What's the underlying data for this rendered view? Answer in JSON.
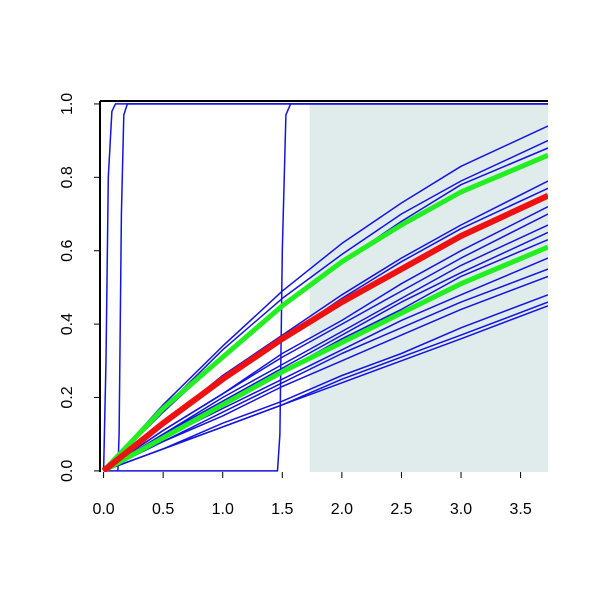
{
  "chart_data": {
    "type": "line",
    "xlim": [
      -0.03,
      3.73
    ],
    "ylim": [
      -0.003,
      1.008
    ],
    "xticks": [
      {
        "value": 0,
        "label": "0.0"
      },
      0.5,
      {
        "value": 1,
        "label": "1.0"
      },
      1.5,
      {
        "value": 2,
        "label": "2.0"
      },
      2.5,
      {
        "value": 3,
        "label": "3.0"
      },
      3.5
    ],
    "yticks": [
      {
        "value": 0,
        "label": "0.0"
      },
      0.2,
      0.4,
      0.6,
      0.8,
      {
        "value": 1,
        "label": "1.0"
      }
    ],
    "shade_from": 1.73,
    "shade_color": "#e0ecec",
    "series": [
      {
        "color": "#1414dc",
        "width": 1.5,
        "x": [
          0,
          0.02,
          0.04,
          0.07,
          0.1,
          3.73
        ],
        "values": [
          0,
          0.3,
          0.8,
          0.98,
          1,
          1
        ]
      },
      {
        "color": "#1414dc",
        "width": 1.5,
        "x": [
          0.12,
          0.13,
          0.15,
          0.17,
          0.2,
          3.73
        ],
        "values": [
          0,
          0.1,
          0.7,
          0.97,
          1,
          1
        ]
      },
      {
        "color": "#1414dc",
        "width": 1.5,
        "x": [
          0,
          1.46,
          1.48,
          1.5,
          1.53,
          1.57,
          3.73
        ],
        "values": [
          0,
          0,
          0.1,
          0.6,
          0.97,
          1,
          1
        ]
      },
      {
        "color": "#1414dc",
        "width": 1.5,
        "x": [
          0,
          0.5,
          1,
          1.5,
          2,
          2.5,
          3,
          3.73
        ],
        "values": [
          0,
          0.18,
          0.34,
          0.49,
          0.62,
          0.73,
          0.83,
          0.94
        ]
      },
      {
        "color": "#1414dc",
        "width": 1.5,
        "x": [
          0,
          0.5,
          1,
          1.5,
          2,
          2.5,
          3,
          3.73
        ],
        "values": [
          0,
          0.17,
          0.33,
          0.47,
          0.59,
          0.7,
          0.79,
          0.9
        ]
      },
      {
        "color": "#1414dc",
        "width": 1.5,
        "x": [
          0,
          0.5,
          1,
          1.5,
          2,
          2.5,
          3,
          3.73
        ],
        "values": [
          0,
          0.16,
          0.31,
          0.45,
          0.57,
          0.68,
          0.78,
          0.88
        ]
      },
      {
        "color": "#1414dc",
        "width": 1.5,
        "x": [
          0,
          0.5,
          1,
          1.5,
          2,
          2.5,
          3,
          3.73
        ],
        "values": [
          0,
          0.13,
          0.26,
          0.37,
          0.48,
          0.58,
          0.67,
          0.79
        ]
      },
      {
        "color": "#1414dc",
        "width": 1.5,
        "x": [
          0,
          0.5,
          1,
          1.5,
          2,
          2.5,
          3,
          3.73
        ],
        "values": [
          0,
          0.13,
          0.25,
          0.36,
          0.47,
          0.57,
          0.66,
          0.77
        ]
      },
      {
        "color": "#1414dc",
        "width": 1.5,
        "x": [
          0,
          0.5,
          1,
          1.5,
          2,
          2.5,
          3,
          3.73
        ],
        "values": [
          0,
          0.11,
          0.21,
          0.32,
          0.41,
          0.51,
          0.6,
          0.72
        ]
      },
      {
        "color": "#1414dc",
        "width": 1.5,
        "x": [
          0,
          0.5,
          1,
          1.5,
          2,
          2.5,
          3,
          3.73
        ],
        "values": [
          0,
          0.11,
          0.21,
          0.31,
          0.4,
          0.49,
          0.58,
          0.7
        ]
      },
      {
        "color": "#1414dc",
        "width": 1.5,
        "x": [
          0,
          0.5,
          1,
          1.5,
          2,
          2.5,
          3,
          3.73
        ],
        "values": [
          0,
          0.1,
          0.2,
          0.29,
          0.38,
          0.47,
          0.56,
          0.67
        ]
      },
      {
        "color": "#1414dc",
        "width": 1.5,
        "x": [
          0,
          0.5,
          1,
          1.5,
          2,
          2.5,
          3,
          3.73
        ],
        "values": [
          0,
          0.1,
          0.19,
          0.28,
          0.37,
          0.46,
          0.54,
          0.65
        ]
      },
      {
        "color": "#1414dc",
        "width": 1.5,
        "x": [
          0,
          0.5,
          1,
          1.5,
          2,
          2.5,
          3,
          3.73
        ],
        "values": [
          0,
          0.09,
          0.18,
          0.27,
          0.36,
          0.44,
          0.53,
          0.63
        ]
      },
      {
        "color": "#1414dc",
        "width": 1.5,
        "x": [
          0,
          0.5,
          1,
          1.5,
          2,
          2.5,
          3,
          3.73
        ],
        "values": [
          0,
          0.09,
          0.17,
          0.25,
          0.33,
          0.41,
          0.48,
          0.58
        ]
      },
      {
        "color": "#1414dc",
        "width": 1.5,
        "x": [
          0,
          0.5,
          1,
          1.5,
          2,
          2.5,
          3,
          3.73
        ],
        "values": [
          0,
          0.08,
          0.16,
          0.24,
          0.32,
          0.39,
          0.46,
          0.55
        ]
      },
      {
        "color": "#1414dc",
        "width": 1.5,
        "x": [
          0,
          0.5,
          1,
          1.5,
          2,
          2.5,
          3,
          3.73
        ],
        "values": [
          0,
          0.08,
          0.15,
          0.23,
          0.3,
          0.37,
          0.44,
          0.53
        ]
      },
      {
        "color": "#1414dc",
        "width": 1.5,
        "x": [
          0,
          0.5,
          1,
          1.5,
          2,
          2.5,
          3,
          3.73
        ],
        "values": [
          0,
          0.06,
          0.13,
          0.19,
          0.26,
          0.32,
          0.39,
          0.48
        ]
      },
      {
        "color": "#1414dc",
        "width": 1.5,
        "x": [
          0,
          0.5,
          1,
          1.5,
          2,
          2.5,
          3,
          3.73
        ],
        "values": [
          0,
          0.06,
          0.12,
          0.18,
          0.25,
          0.31,
          0.37,
          0.46
        ]
      },
      {
        "color": "#1414dc",
        "width": 1.5,
        "x": [
          0,
          0.5,
          1,
          1.5,
          2,
          2.5,
          3,
          3.73
        ],
        "values": [
          0,
          0.06,
          0.12,
          0.18,
          0.24,
          0.3,
          0.36,
          0.45
        ]
      },
      {
        "color": "#22ee22",
        "width": 5,
        "x": [
          0,
          0.5,
          1,
          1.5,
          2,
          2.5,
          3,
          3.73
        ],
        "values": [
          0,
          0.17,
          0.31,
          0.45,
          0.57,
          0.67,
          0.76,
          0.86
        ]
      },
      {
        "color": "#22ee22",
        "width": 5,
        "x": [
          0,
          0.5,
          1,
          1.5,
          2,
          2.5,
          3,
          3.73
        ],
        "values": [
          0,
          0.09,
          0.18,
          0.27,
          0.35,
          0.43,
          0.51,
          0.61
        ]
      },
      {
        "color": "#ee1111",
        "width": 6,
        "x": [
          0,
          0.5,
          1,
          1.5,
          2,
          2.5,
          3,
          3.73
        ],
        "values": [
          0,
          0.13,
          0.25,
          0.36,
          0.46,
          0.55,
          0.64,
          0.75
        ]
      }
    ]
  }
}
